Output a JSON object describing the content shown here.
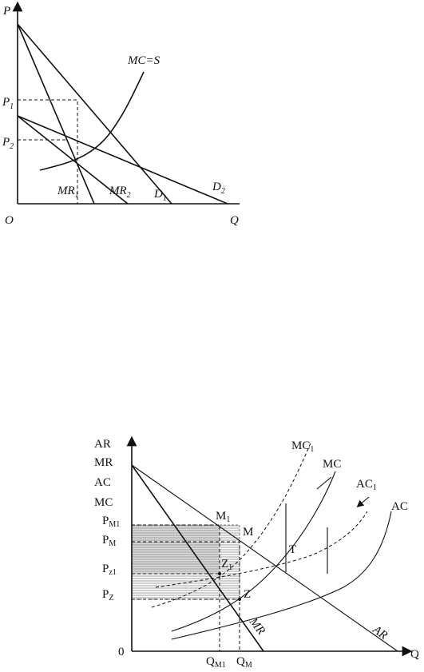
{
  "top": {
    "y_axis": "P",
    "origin": "O",
    "x_axis": "Q",
    "prices": [
      {
        "main": "P",
        "sub": "1"
      },
      {
        "main": "P",
        "sub": "2"
      }
    ],
    "curves": [
      {
        "main": "MC=S"
      },
      {
        "main": "MR",
        "sub": "1"
      },
      {
        "main": "MR",
        "sub": "2"
      },
      {
        "main": "D",
        "sub": "1"
      },
      {
        "main": "D",
        "sub": "2"
      }
    ]
  },
  "bottom": {
    "y_axis": [
      "AR",
      "MR",
      "AC",
      "MC"
    ],
    "origin": "0",
    "x_axis": "Q",
    "prices": [
      {
        "main": "P",
        "sub": "M1"
      },
      {
        "main": "P",
        "sub": "M"
      },
      {
        "main": "P",
        "sub": "z1"
      },
      {
        "main": "P",
        "sub": "Z"
      }
    ],
    "quantities": [
      {
        "main": "Q",
        "sub": "M1"
      },
      {
        "main": "Q",
        "sub": "M"
      }
    ],
    "points": [
      {
        "main": "M",
        "sub": "1"
      },
      {
        "main": "M"
      },
      {
        "main": "Z",
        "sub": "1"
      },
      {
        "main": "Z"
      },
      {
        "main": "T"
      }
    ],
    "curves": [
      {
        "main": "MC",
        "sub": "1"
      },
      {
        "main": "MC"
      },
      {
        "main": "AC",
        "sub": "1"
      },
      {
        "main": "AC"
      },
      {
        "main": "MR"
      },
      {
        "main": "AR"
      }
    ]
  }
}
